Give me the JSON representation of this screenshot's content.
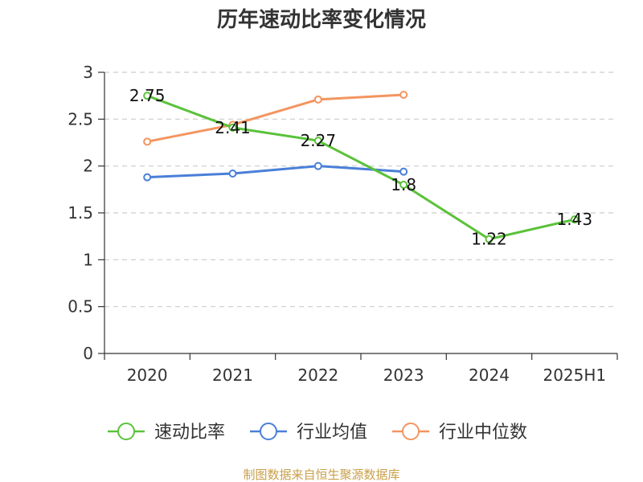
{
  "chart_data": {
    "type": "line",
    "title": "历年速动比率变化情况",
    "categories": [
      "2020",
      "2021",
      "2022",
      "2023",
      "2024",
      "2025H1"
    ],
    "ylim": [
      0,
      3
    ],
    "yticks": [
      "0",
      "0.5",
      "1",
      "1.5",
      "2",
      "2.5",
      "3"
    ],
    "grid": true,
    "legend_position": "bottom",
    "series": [
      {
        "name": "速动比率",
        "color": "#5ac23a",
        "values": [
          2.75,
          2.41,
          2.27,
          1.8,
          1.22,
          1.43
        ],
        "labels": [
          "2.75",
          "2.41",
          "2.27",
          "1.8",
          "1.22",
          "1.43"
        ],
        "show_labels": true
      },
      {
        "name": "行业均值",
        "color": "#4a7fd8",
        "values": [
          1.88,
          1.92,
          2.0,
          1.94,
          null,
          null
        ],
        "show_labels": false
      },
      {
        "name": "行业中位数",
        "color": "#f39560",
        "values": [
          2.26,
          2.44,
          2.71,
          2.76,
          null,
          null
        ],
        "show_labels": false
      }
    ]
  },
  "footer": {
    "source": "制图数据来自恒生聚源数据库"
  }
}
